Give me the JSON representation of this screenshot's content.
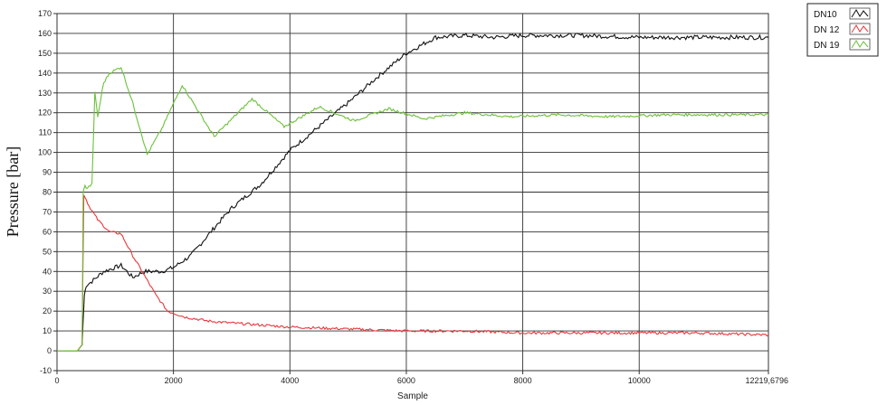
{
  "chart_data": {
    "type": "line",
    "xlabel": "Sample",
    "ylabel": "Pressure [bar]",
    "xlim": [
      0,
      12219.6796
    ],
    "ylim": [
      -10,
      170
    ],
    "x_ticks": [
      "0",
      "2000",
      "4000",
      "6000",
      "8000",
      "10000",
      "12219,6796"
    ],
    "x_tick_values": [
      0,
      2000,
      4000,
      6000,
      8000,
      10000,
      12219.6796
    ],
    "y_ticks": [
      "170",
      "160",
      "150",
      "140",
      "130",
      "120",
      "110",
      "100",
      "90",
      "80",
      "70",
      "60",
      "50",
      "40",
      "30",
      "20",
      "10",
      "0",
      "-10"
    ],
    "y_tick_values": [
      170,
      160,
      150,
      140,
      130,
      120,
      110,
      100,
      90,
      80,
      70,
      60,
      50,
      40,
      30,
      20,
      10,
      0,
      -10
    ],
    "grid": true,
    "legend_position": "top-right",
    "series": [
      {
        "name": "DN10",
        "color": "#111111",
        "x": [
          0,
          350,
          430,
          470,
          500,
          600,
          800,
          1100,
          1300,
          1500,
          1800,
          2000,
          2300,
          2700,
          3000,
          3500,
          4000,
          4500,
          5000,
          5500,
          6000,
          6500,
          7000,
          7500,
          8000,
          9000,
          10000,
          11000,
          12219
        ],
        "y": [
          0,
          0,
          3,
          28,
          33,
          35,
          40,
          43,
          37,
          40,
          40,
          42,
          48,
          62,
          72,
          84,
          101,
          113,
          125,
          138,
          150,
          158,
          159,
          158,
          159,
          159,
          158,
          158,
          158
        ]
      },
      {
        "name": "DN 12",
        "color": "#e8383d",
        "x": [
          0,
          350,
          430,
          460,
          550,
          700,
          900,
          1100,
          1300,
          1500,
          1700,
          1900,
          2200,
          2600,
          3000,
          3500,
          4000,
          5000,
          6000,
          7000,
          8000,
          9000,
          10000,
          11000,
          12219
        ],
        "y": [
          0,
          0,
          3,
          79,
          73,
          66,
          60,
          59,
          48,
          38,
          28,
          20,
          17,
          15,
          14,
          13,
          12,
          11,
          10,
          10,
          9,
          9,
          9,
          9,
          8
        ]
      },
      {
        "name": "DN 19",
        "color": "#6cc13a",
        "x": [
          0,
          350,
          430,
          450,
          480,
          520,
          600,
          650,
          700,
          800,
          900,
          1100,
          1300,
          1550,
          1800,
          2150,
          2700,
          3350,
          3900,
          4500,
          5100,
          5700,
          6300,
          7000,
          7800,
          8600,
          9500,
          10500,
          11500,
          12219
        ],
        "y": [
          0,
          0,
          3,
          80,
          83,
          82,
          84,
          130,
          118,
          135,
          140,
          143,
          125,
          99,
          112,
          134,
          108,
          127,
          113,
          123,
          116,
          122,
          117,
          120,
          118,
          119,
          118,
          119,
          119,
          119
        ]
      }
    ]
  }
}
